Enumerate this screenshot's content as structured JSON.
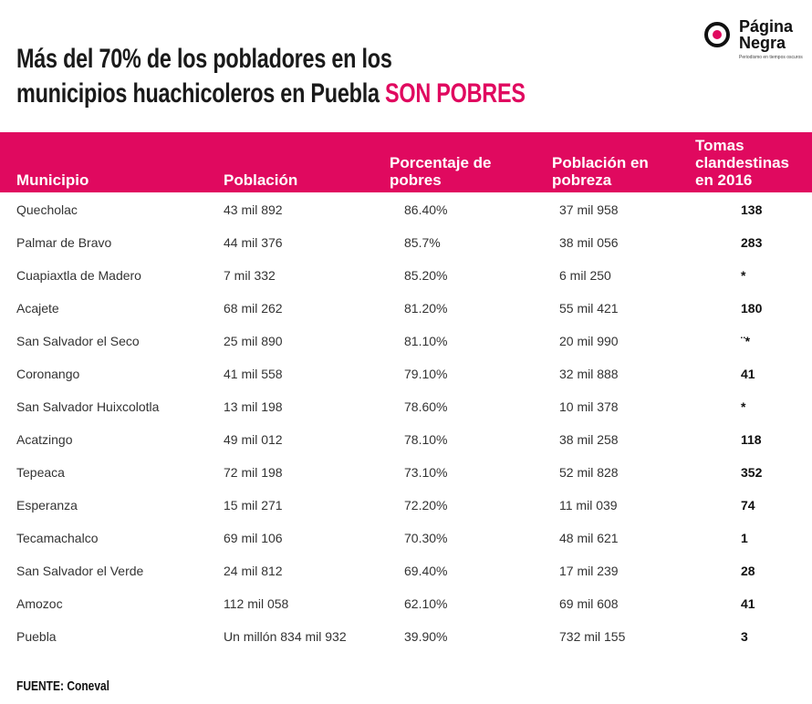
{
  "title": {
    "line1": "Más del 70% de los pobladores en los",
    "line2": "municipios huachicoleros en Puebla",
    "highlight": "SON POBRES"
  },
  "logo": {
    "name": "Página Negra",
    "tagline": "Periodismo en tiempos oscuros"
  },
  "table": {
    "headers": [
      "Municipio",
      "Población",
      "Porcentaje de pobres",
      "Población en pobreza",
      "Tomas clandestinas en 2016"
    ],
    "rows": [
      [
        "Quecholac",
        "43 mil 892",
        "86.40%",
        "37 mil 958",
        "138"
      ],
      [
        "Palmar de Bravo",
        "44 mil 376",
        "85.7%",
        "38 mil 056",
        "283"
      ],
      [
        "Cuapiaxtla de Madero",
        "7 mil 332",
        "85.20%",
        "6 mil 250",
        "*"
      ],
      [
        "Acajete",
        "68 mil 262",
        "81.20%",
        "55 mil 421",
        "180"
      ],
      [
        "San Salvador el Seco",
        "25 mil 890",
        "81.10%",
        "20 mil 990",
        "¨*"
      ],
      [
        "Coronango",
        "41 mil 558",
        "79.10%",
        "32 mil 888",
        "41"
      ],
      [
        "San Salvador Huixcolotla",
        "13 mil 198",
        "78.60%",
        "10 mil 378",
        "*"
      ],
      [
        "Acatzingo",
        "49 mil 012",
        "78.10%",
        "38 mil 258",
        "118"
      ],
      [
        "Tepeaca",
        "72 mil 198",
        "73.10%",
        "52 mil 828",
        "352"
      ],
      [
        "Esperanza",
        "15 mil 271",
        "72.20%",
        "11 mil 039",
        "74"
      ],
      [
        "Tecamachalco",
        "69 mil 106",
        "70.30%",
        "48 mil 621",
        "1"
      ],
      [
        "San Salvador el Verde",
        "24 mil 812",
        "69.40%",
        "17 mil 239",
        "28"
      ],
      [
        "Amozoc",
        "112 mil 058",
        "62.10%",
        "69 mil 608",
        "41"
      ],
      [
        "Puebla",
        "Un millón 834 mil 932",
        "39.90%",
        "732 mil 155",
        "3"
      ]
    ]
  },
  "source": "FUENTE: Coneval"
}
